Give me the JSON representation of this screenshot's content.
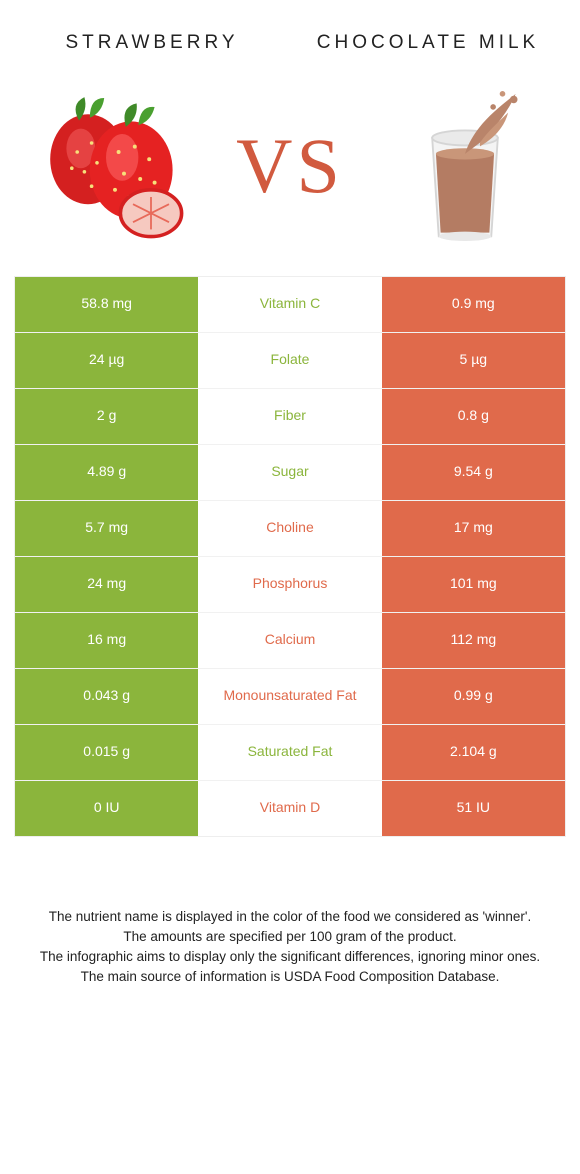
{
  "colors": {
    "left_win": "#8bb53c",
    "right_win": "#e06a4b",
    "vs_text": "#d15a3f",
    "label_left": "#8bb53c",
    "label_right": "#e06a4b",
    "text_white": "#ffffff"
  },
  "header": {
    "left_title": "STRAWBERRY",
    "right_title": "CHOCOLATE MILK",
    "vs_label": "VS"
  },
  "rows": [
    {
      "label": "Vitamin C",
      "left": "58.8 mg",
      "right": "0.9 mg",
      "winner": "left"
    },
    {
      "label": "Folate",
      "left": "24 µg",
      "right": "5 µg",
      "winner": "left"
    },
    {
      "label": "Fiber",
      "left": "2 g",
      "right": "0.8 g",
      "winner": "left"
    },
    {
      "label": "Sugar",
      "left": "4.89 g",
      "right": "9.54 g",
      "winner": "left"
    },
    {
      "label": "Choline",
      "left": "5.7 mg",
      "right": "17 mg",
      "winner": "right"
    },
    {
      "label": "Phosphorus",
      "left": "24 mg",
      "right": "101 mg",
      "winner": "right"
    },
    {
      "label": "Calcium",
      "left": "16 mg",
      "right": "112 mg",
      "winner": "right"
    },
    {
      "label": "Monounsaturated Fat",
      "left": "0.043 g",
      "right": "0.99 g",
      "winner": "right"
    },
    {
      "label": "Saturated Fat",
      "left": "0.015 g",
      "right": "2.104 g",
      "winner": "left"
    },
    {
      "label": "Vitamin D",
      "left": "0 IU",
      "right": "51 IU",
      "winner": "right"
    }
  ],
  "notes": [
    "The nutrient name is displayed in the color of the food we considered as 'winner'.",
    "The amounts are specified per 100 gram of the product.",
    "The infographic aims to display only the significant differences, ignoring minor ones.",
    "The main source of information is USDA Food Composition Database."
  ]
}
